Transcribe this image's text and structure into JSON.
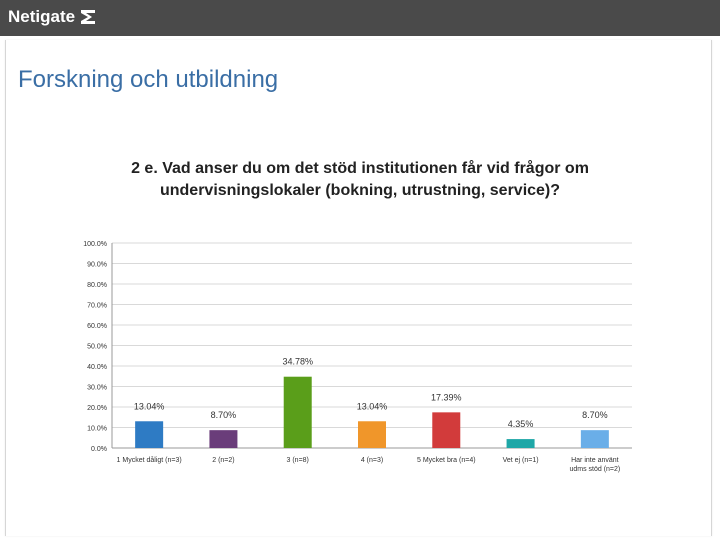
{
  "header": {
    "brand": "Netigate"
  },
  "page": {
    "section_title": "Forskning och utbildning"
  },
  "colors": {
    "topbar": "#4a4a4a",
    "section_title": "#3a6ea5",
    "gridline": "#d9d9d9"
  },
  "chart_data": {
    "type": "bar",
    "title": "2 e. Vad anser du om det stöd institutionen får vid frågor om undervisningslokaler (bokning, utrustning, service)?",
    "categories": [
      [
        "1 Mycket dåligt (n=3)"
      ],
      [
        "2 (n=2)"
      ],
      [
        "3 (n=8)"
      ],
      [
        "4 (n=3)"
      ],
      [
        "5 Mycket bra (n=4)"
      ],
      [
        "Vet ej (n=1)"
      ],
      [
        "Har inte använt",
        "udms stöd (n=2)"
      ]
    ],
    "values": [
      13.04,
      8.7,
      34.78,
      13.04,
      17.39,
      4.35,
      8.7
    ],
    "value_labels": [
      "13.04%",
      "8.70%",
      "34.78%",
      "13.04%",
      "17.39%",
      "4.35%",
      "8.70%"
    ],
    "colors": [
      "#2e7bc4",
      "#6a3d7a",
      "#5a9e1a",
      "#f0962a",
      "#d23b3b",
      "#1fa7a7",
      "#6aaee8"
    ],
    "yticks": [
      "100.0%",
      "90.0%",
      "80.0%",
      "70.0%",
      "60.0%",
      "50.0%",
      "40.0%",
      "30.0%",
      "20.0%",
      "10.0%",
      "0.0%"
    ],
    "ylim": [
      0,
      100
    ],
    "grid": true
  }
}
